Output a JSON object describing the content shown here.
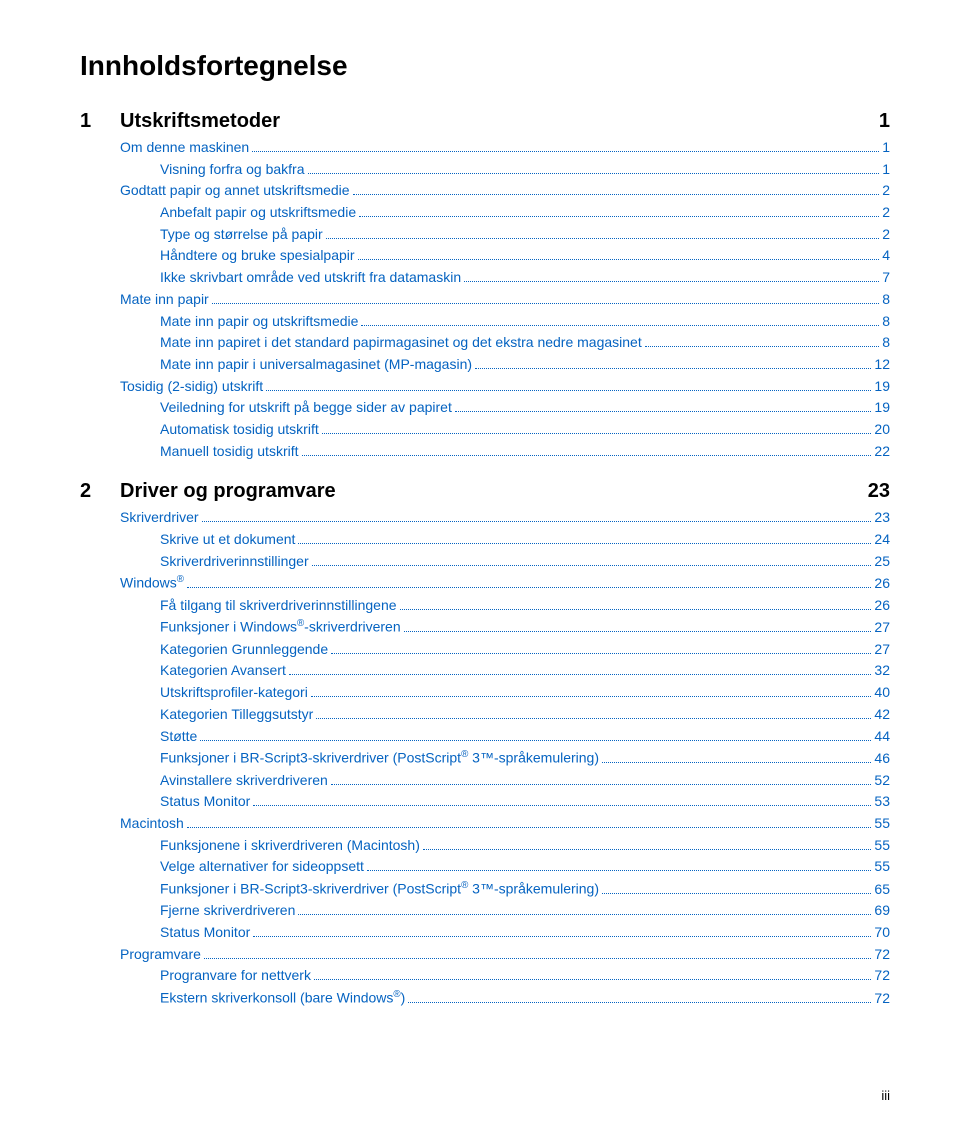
{
  "title": "Innholdsfortegnelse",
  "footer": "iii",
  "colors": {
    "link": "#0563c1",
    "text": "#000000",
    "bg": "#ffffff"
  },
  "typography": {
    "title_fontsize": 28,
    "section_fontsize": 20,
    "entry_fontsize": 14,
    "font_family": "Arial"
  },
  "sections": [
    {
      "num": "1",
      "title": "Utskriftsmetoder",
      "page": "1",
      "entries": [
        {
          "indent": 1,
          "label": "Om denne maskinen",
          "page": "1"
        },
        {
          "indent": 2,
          "label": "Visning forfra og bakfra",
          "page": "1"
        },
        {
          "indent": 1,
          "label": "Godtatt papir og annet utskriftsmedie",
          "page": "2"
        },
        {
          "indent": 2,
          "label": "Anbefalt papir og utskriftsmedie",
          "page": "2"
        },
        {
          "indent": 2,
          "label": "Type og størrelse på papir",
          "page": "2"
        },
        {
          "indent": 2,
          "label": "Håndtere og bruke spesialpapir",
          "page": "4"
        },
        {
          "indent": 2,
          "label": "Ikke skrivbart område ved utskrift fra datamaskin",
          "page": "7"
        },
        {
          "indent": 1,
          "label": "Mate inn papir",
          "page": "8"
        },
        {
          "indent": 2,
          "label": "Mate inn papir og utskriftsmedie",
          "page": "8"
        },
        {
          "indent": 2,
          "label": "Mate inn papiret i det standard papirmagasinet og det ekstra nedre magasinet",
          "page": "8"
        },
        {
          "indent": 2,
          "label": "Mate inn papir i universalmagasinet (MP-magasin)",
          "page": "12"
        },
        {
          "indent": 1,
          "label": "Tosidig (2-sidig) utskrift",
          "page": "19"
        },
        {
          "indent": 2,
          "label": "Veiledning for utskrift på begge sider av papiret",
          "page": "19"
        },
        {
          "indent": 2,
          "label": "Automatisk tosidig utskrift",
          "page": "20"
        },
        {
          "indent": 2,
          "label": "Manuell tosidig utskrift",
          "page": "22"
        }
      ]
    },
    {
      "num": "2",
      "title": "Driver og programvare",
      "page": "23",
      "entries": [
        {
          "indent": 1,
          "label": "Skriverdriver",
          "page": "23"
        },
        {
          "indent": 2,
          "label": "Skrive ut et dokument",
          "page": "24"
        },
        {
          "indent": 2,
          "label": "Skriverdriverinnstillinger",
          "page": "25"
        },
        {
          "indent": 1,
          "label": "Windows<sup>®</sup>",
          "page": "26"
        },
        {
          "indent": 2,
          "label": "Få tilgang til skriverdriverinnstillingene",
          "page": "26"
        },
        {
          "indent": 2,
          "label": "Funksjoner i Windows<sup>®</sup>-skriverdriveren",
          "page": "27"
        },
        {
          "indent": 2,
          "label": "Kategorien Grunnleggende",
          "page": "27"
        },
        {
          "indent": 2,
          "label": "Kategorien Avansert",
          "page": "32"
        },
        {
          "indent": 2,
          "label": "Utskriftsprofiler-kategori",
          "page": "40"
        },
        {
          "indent": 2,
          "label": "Kategorien Tilleggsutstyr",
          "page": "42"
        },
        {
          "indent": 2,
          "label": "Støtte",
          "page": "44"
        },
        {
          "indent": 2,
          "label": "Funksjoner i BR-Script3-skriverdriver (PostScript<sup>®</sup> 3™-språkemulering)",
          "page": "46"
        },
        {
          "indent": 2,
          "label": "Avinstallere skriverdriveren",
          "page": "52"
        },
        {
          "indent": 2,
          "label": "Status Monitor",
          "page": "53"
        },
        {
          "indent": 1,
          "label": "Macintosh",
          "page": "55"
        },
        {
          "indent": 2,
          "label": "Funksjonene i skriverdriveren (Macintosh)",
          "page": "55"
        },
        {
          "indent": 2,
          "label": "Velge alternativer for sideoppsett",
          "page": "55"
        },
        {
          "indent": 2,
          "label": "Funksjoner i BR-Script3-skriverdriver (PostScript<sup>®</sup> 3™-språkemulering)",
          "page": "65"
        },
        {
          "indent": 2,
          "label": "Fjerne skriverdriveren",
          "page": "69"
        },
        {
          "indent": 2,
          "label": "Status Monitor",
          "page": "70"
        },
        {
          "indent": 1,
          "label": "Programvare",
          "page": "72"
        },
        {
          "indent": 2,
          "label": "Progranvare for nettverk",
          "page": "72"
        },
        {
          "indent": 2,
          "label": "Ekstern skriverkonsoll (bare Windows<sup>®</sup>)",
          "page": "72"
        }
      ]
    }
  ]
}
